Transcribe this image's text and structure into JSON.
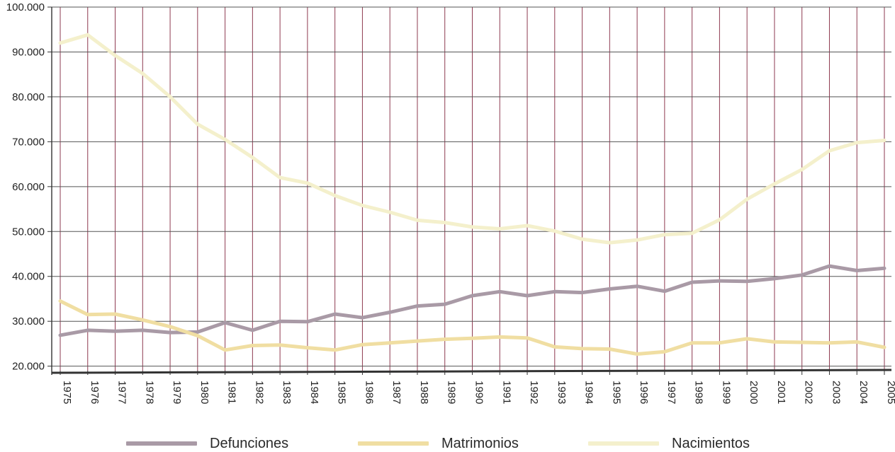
{
  "chart_data": {
    "type": "line",
    "title": "",
    "xlabel": "",
    "ylabel": "",
    "x": [
      "1975",
      "1976",
      "1977",
      "1978",
      "1979",
      "1980",
      "1981",
      "1982",
      "1983",
      "1984",
      "1985",
      "1986",
      "1987",
      "1988",
      "1989",
      "1990",
      "1991",
      "1992",
      "1993",
      "1994",
      "1995",
      "1996",
      "1997",
      "1998",
      "1999",
      "2000",
      "2001",
      "2002",
      "2003",
      "2004",
      "2005"
    ],
    "ylim": [
      19000,
      100000
    ],
    "yticks": [
      20000,
      30000,
      40000,
      50000,
      60000,
      70000,
      80000,
      90000,
      100000
    ],
    "ytick_labels": [
      "20.000",
      "30.000",
      "40.000",
      "50.000",
      "60.000",
      "70.000",
      "80.000",
      "90.000",
      "100.000"
    ],
    "grid": true,
    "legend_position": "bottom",
    "series": [
      {
        "name": "Defunciones",
        "color": "#a99aa6",
        "values": [
          26900,
          28000,
          27800,
          28000,
          27500,
          27600,
          29700,
          28000,
          30000,
          29900,
          31600,
          30800,
          32000,
          33400,
          33800,
          35700,
          36600,
          35700,
          36600,
          36400,
          37200,
          37800,
          36700,
          38700,
          39000,
          38900,
          39500,
          40300,
          42300,
          41300,
          41800
        ]
      },
      {
        "name": "Matrimonios",
        "color": "#f0dea2",
        "values": [
          34500,
          31500,
          31600,
          30300,
          28800,
          26800,
          23600,
          24600,
          24700,
          24100,
          23600,
          24800,
          25200,
          25600,
          26000,
          26200,
          26500,
          26300,
          24300,
          23900,
          23800,
          22700,
          23200,
          25200,
          25200,
          26100,
          25400,
          25300,
          25200,
          25400,
          24200
        ]
      },
      {
        "name": "Nacimientos",
        "color": "#f4f0cc",
        "values": [
          92000,
          93800,
          89200,
          85200,
          80000,
          73900,
          70500,
          66500,
          62000,
          60800,
          58000,
          55800,
          54300,
          52500,
          52000,
          51000,
          50600,
          51300,
          50100,
          48300,
          47500,
          48100,
          49300,
          49600,
          52600,
          57200,
          60600,
          63800,
          68000,
          69800,
          70300
        ]
      }
    ]
  }
}
